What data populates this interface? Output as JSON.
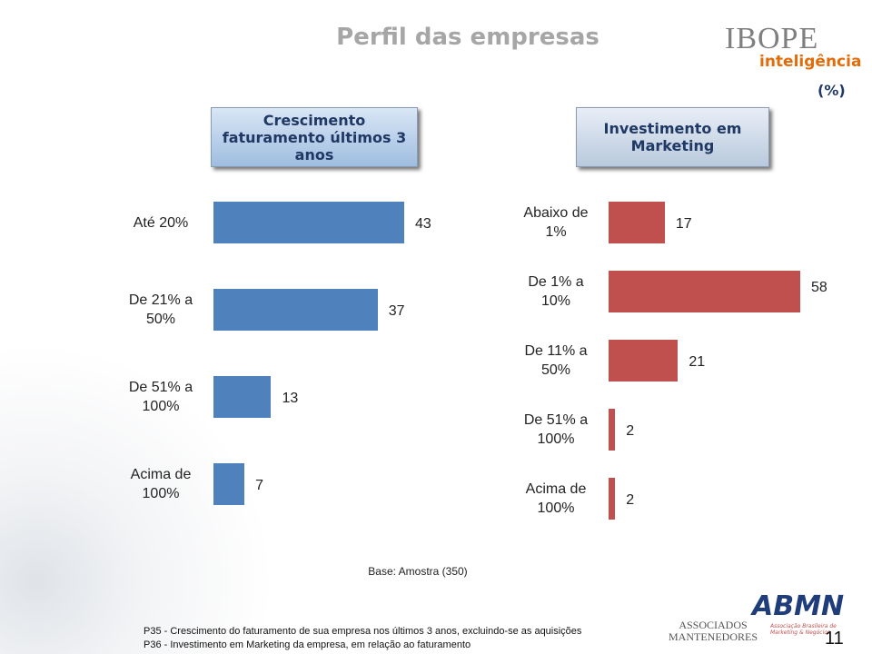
{
  "header": {
    "title": "Perfil das empresas",
    "logo": "IBOPE",
    "logo_sub": "inteligência",
    "unit": "(%)"
  },
  "chart_data": [
    {
      "type": "bar",
      "orientation": "horizontal",
      "title": "Crescimento faturamento últimos 3 anos",
      "categories": [
        "Até 20%",
        "De 21% a 50%",
        "De 51% a 100%",
        "Acima de 100%"
      ],
      "values": [
        43,
        37,
        13,
        7
      ],
      "color": "#4f81bd"
    },
    {
      "type": "bar",
      "orientation": "horizontal",
      "title": "Investimento em Marketing",
      "categories": [
        "Abaixo de 1%",
        "De 1% a 10%",
        "De 11% a 50%",
        "De 51% a 100%",
        "Acima de 100%"
      ],
      "values": [
        17,
        58,
        21,
        2,
        2
      ],
      "color": "#c0504d"
    }
  ],
  "footer": {
    "base": "Base: Amostra (350)",
    "notes": [
      "P35 - Crescimento do faturamento de sua empresa nos últimos 3 anos, excluindo-se as aquisições",
      "P36 - Investimento em Marketing da empresa, em relação ao faturamento"
    ],
    "logos": [
      "ASSOCIADOS MANTENEDORES",
      "ABMN",
      "Associação Brasileira de Marketing & Negócios"
    ],
    "page": "11"
  }
}
